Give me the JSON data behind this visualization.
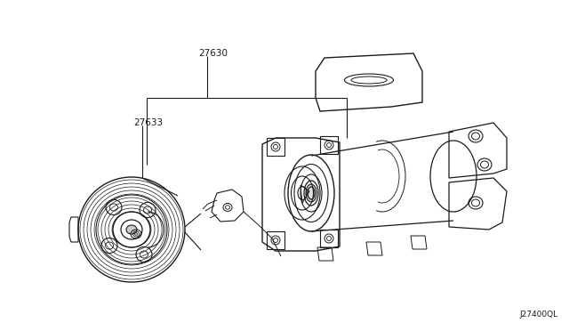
{
  "background_color": "#ffffff",
  "line_color": "#1a1a1a",
  "label_27630": "27630",
  "label_27633": "27633",
  "diagram_code": "J27400QL",
  "figsize": [
    6.4,
    3.72
  ],
  "dpi": 100
}
